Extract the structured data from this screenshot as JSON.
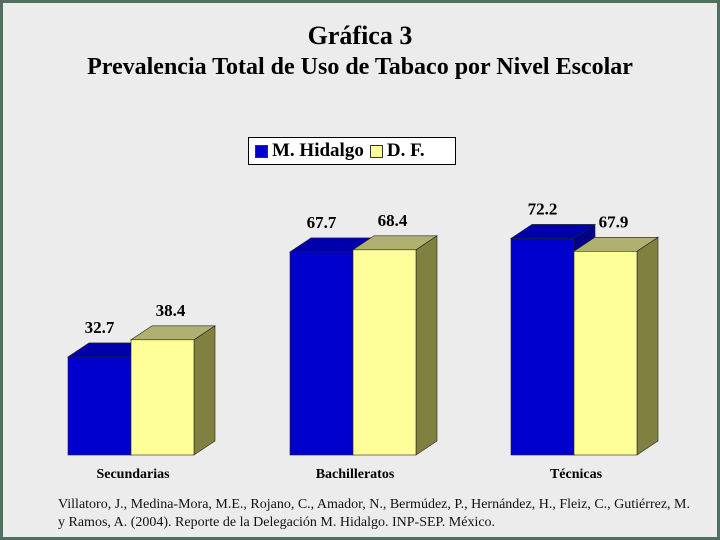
{
  "title_line1": "Gráfica 3",
  "title_line2": "Prevalencia Total de Uso de Tabaco por Nivel Escolar",
  "citation": "Villatoro, J., Medina-Mora, M.E., Rojano, C., Amador, N., Bermúdez, P., Hernández, H., Fleiz, C., Gutiérrez, M. y Ramos, A. (2004). Reporte de la Delegación M. Hidalgo. INP-SEP. México.",
  "chart_data": {
    "type": "bar",
    "title": "Gráfica 3 — Prevalencia Total de Uso de Tabaco por Nivel Escolar",
    "xlabel": "",
    "ylabel": "",
    "categories": [
      "Secundarias",
      "Bachilleratos",
      "Técnicas"
    ],
    "series": [
      {
        "name": "M. Hidalgo",
        "values": [
          32.7,
          67.7,
          72.2
        ],
        "color": "#0000cc",
        "side_color": "#000088",
        "top_color": "#0000aa"
      },
      {
        "name": "D. F.",
        "values": [
          38.4,
          68.4,
          67.9
        ],
        "color": "#ffff99",
        "side_color": "#808040",
        "top_color": "#b0b070"
      }
    ],
    "ylim": [
      0,
      100
    ],
    "legend_position": "top-center",
    "grid": false,
    "style": "3d-bar"
  }
}
